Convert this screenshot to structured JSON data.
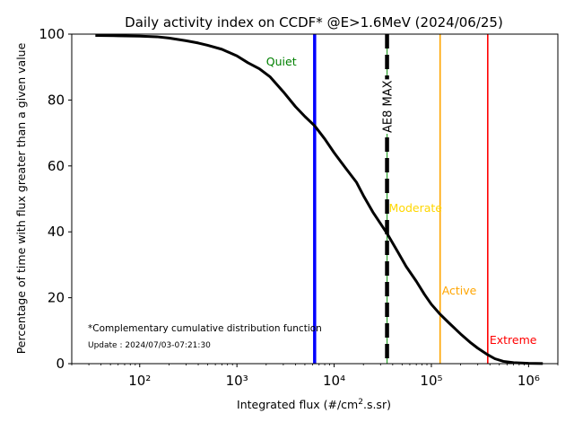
{
  "chart_data": {
    "type": "line",
    "title": "Daily activity index on CCDF* @E>1.6MeV (2024/06/25)",
    "xlabel": "Integrated flux (#/cm².s.sr)",
    "ylabel": "Percentage of time with flux greater than a given value",
    "xscale": "log",
    "xlim": [
      20,
      2000000
    ],
    "ylim": [
      0,
      100
    ],
    "xticks": [
      {
        "value": 100,
        "label": "10²"
      },
      {
        "value": 1000,
        "label": "10³"
      },
      {
        "value": 10000,
        "label": "10⁴"
      },
      {
        "value": 100000,
        "label": "10⁵"
      },
      {
        "value": 1000000,
        "label": "10⁶"
      }
    ],
    "yticks": [
      0,
      20,
      40,
      60,
      80,
      100
    ],
    "grid": false,
    "series": [
      {
        "color": "#000000",
        "points": [
          [
            35,
            99.6
          ],
          [
            60,
            99.5
          ],
          [
            100,
            99.4
          ],
          [
            150,
            99.2
          ],
          [
            200,
            98.8
          ],
          [
            300,
            98.0
          ],
          [
            400,
            97.3
          ],
          [
            500,
            96.6
          ],
          [
            700,
            95.4
          ],
          [
            1000,
            93.4
          ],
          [
            1300,
            91.3
          ],
          [
            1700,
            89.5
          ],
          [
            2200,
            87.0
          ],
          [
            3000,
            82.5
          ],
          [
            4000,
            78.0
          ],
          [
            5000,
            75.0
          ],
          [
            6300,
            72.2
          ],
          [
            8000,
            68.2
          ],
          [
            10000,
            64.0
          ],
          [
            13000,
            59.5
          ],
          [
            17000,
            55.0
          ],
          [
            20000,
            51.0
          ],
          [
            25000,
            46.0
          ],
          [
            30000,
            42.5
          ],
          [
            35000,
            39.5
          ],
          [
            45000,
            34.0
          ],
          [
            55000,
            29.5
          ],
          [
            70000,
            25.0
          ],
          [
            85000,
            21.0
          ],
          [
            100000,
            18.0
          ],
          [
            123000,
            15.0
          ],
          [
            150000,
            12.5
          ],
          [
            200000,
            9.0
          ],
          [
            250000,
            6.5
          ],
          [
            300000,
            4.7
          ],
          [
            380000,
            2.7
          ],
          [
            450000,
            1.5
          ],
          [
            550000,
            0.7
          ],
          [
            700000,
            0.3
          ],
          [
            1000000,
            0.1
          ],
          [
            1400000,
            0.05
          ]
        ]
      }
    ],
    "thresholds": [
      {
        "x": 6300,
        "label": "Quiet",
        "color": "#0000ff",
        "label_color": "#008000",
        "label_x": 2000,
        "label_y": 90.5,
        "style": "solid-thick"
      },
      {
        "x": 35000,
        "label": "AE8 MAX",
        "color": "#000000",
        "style": "dashed-green",
        "label_rotated": true
      },
      {
        "x": 35000,
        "label": "Moderate",
        "color": "#ffd700",
        "label_color": "#ffd700",
        "label_x": 35000,
        "label_y": 46,
        "style": "label-only"
      },
      {
        "x": 123000,
        "label": "Active",
        "color": "#ffa500",
        "label_color": "#ffa500",
        "label_x": 123000,
        "label_y": 21,
        "style": "solid"
      },
      {
        "x": 380000,
        "label": "Extreme",
        "color": "#ff0000",
        "label_color": "#ff0000",
        "label_x": 380000,
        "label_y": 6,
        "style": "solid"
      }
    ],
    "annotations": [
      "*Complementary cumulative distribution function",
      "Update : 2024/07/03-07:21:30"
    ]
  }
}
